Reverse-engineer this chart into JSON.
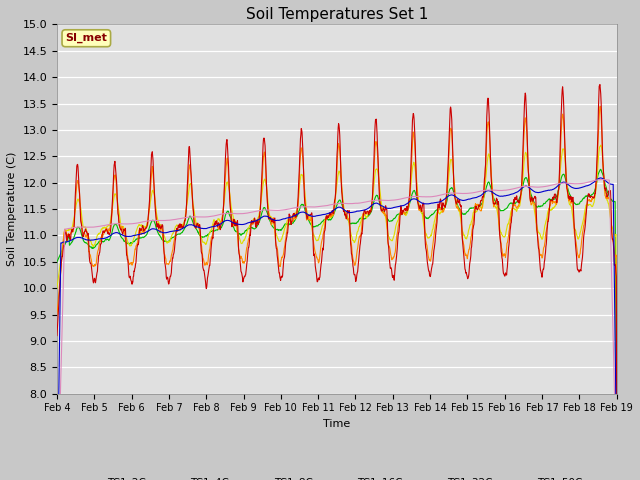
{
  "title": "Soil Temperatures Set 1",
  "ylabel": "Soil Temperature (C)",
  "xlabel": "Time",
  "ylim": [
    8.0,
    15.0
  ],
  "yticks": [
    8.0,
    8.5,
    9.0,
    9.5,
    10.0,
    10.5,
    11.0,
    11.5,
    12.0,
    12.5,
    13.0,
    13.5,
    14.0,
    14.5,
    15.0
  ],
  "xtick_labels": [
    "Feb 4",
    "Feb 5",
    "Feb 6",
    "Feb 7",
    "Feb 8",
    "Feb 9",
    "Feb 10",
    "Feb 11",
    "Feb 12",
    "Feb 13",
    "Feb 14",
    "Feb 15",
    "Feb 16",
    "Feb 17",
    "Feb 18",
    "Feb 19"
  ],
  "fig_bg_color": "#c8c8c8",
  "axes_bg_color": "#e0e0e0",
  "line_colors": {
    "TC1_2Cm": "#cc0000",
    "TC1_4Cm": "#ff8800",
    "TC1_8Cm": "#dddd00",
    "TC1_16Cm": "#00bb00",
    "TC1_32Cm": "#0000cc",
    "TC1_50Cm": "#dd88bb"
  },
  "watermark_text": "SI_met",
  "n_points": 1440
}
